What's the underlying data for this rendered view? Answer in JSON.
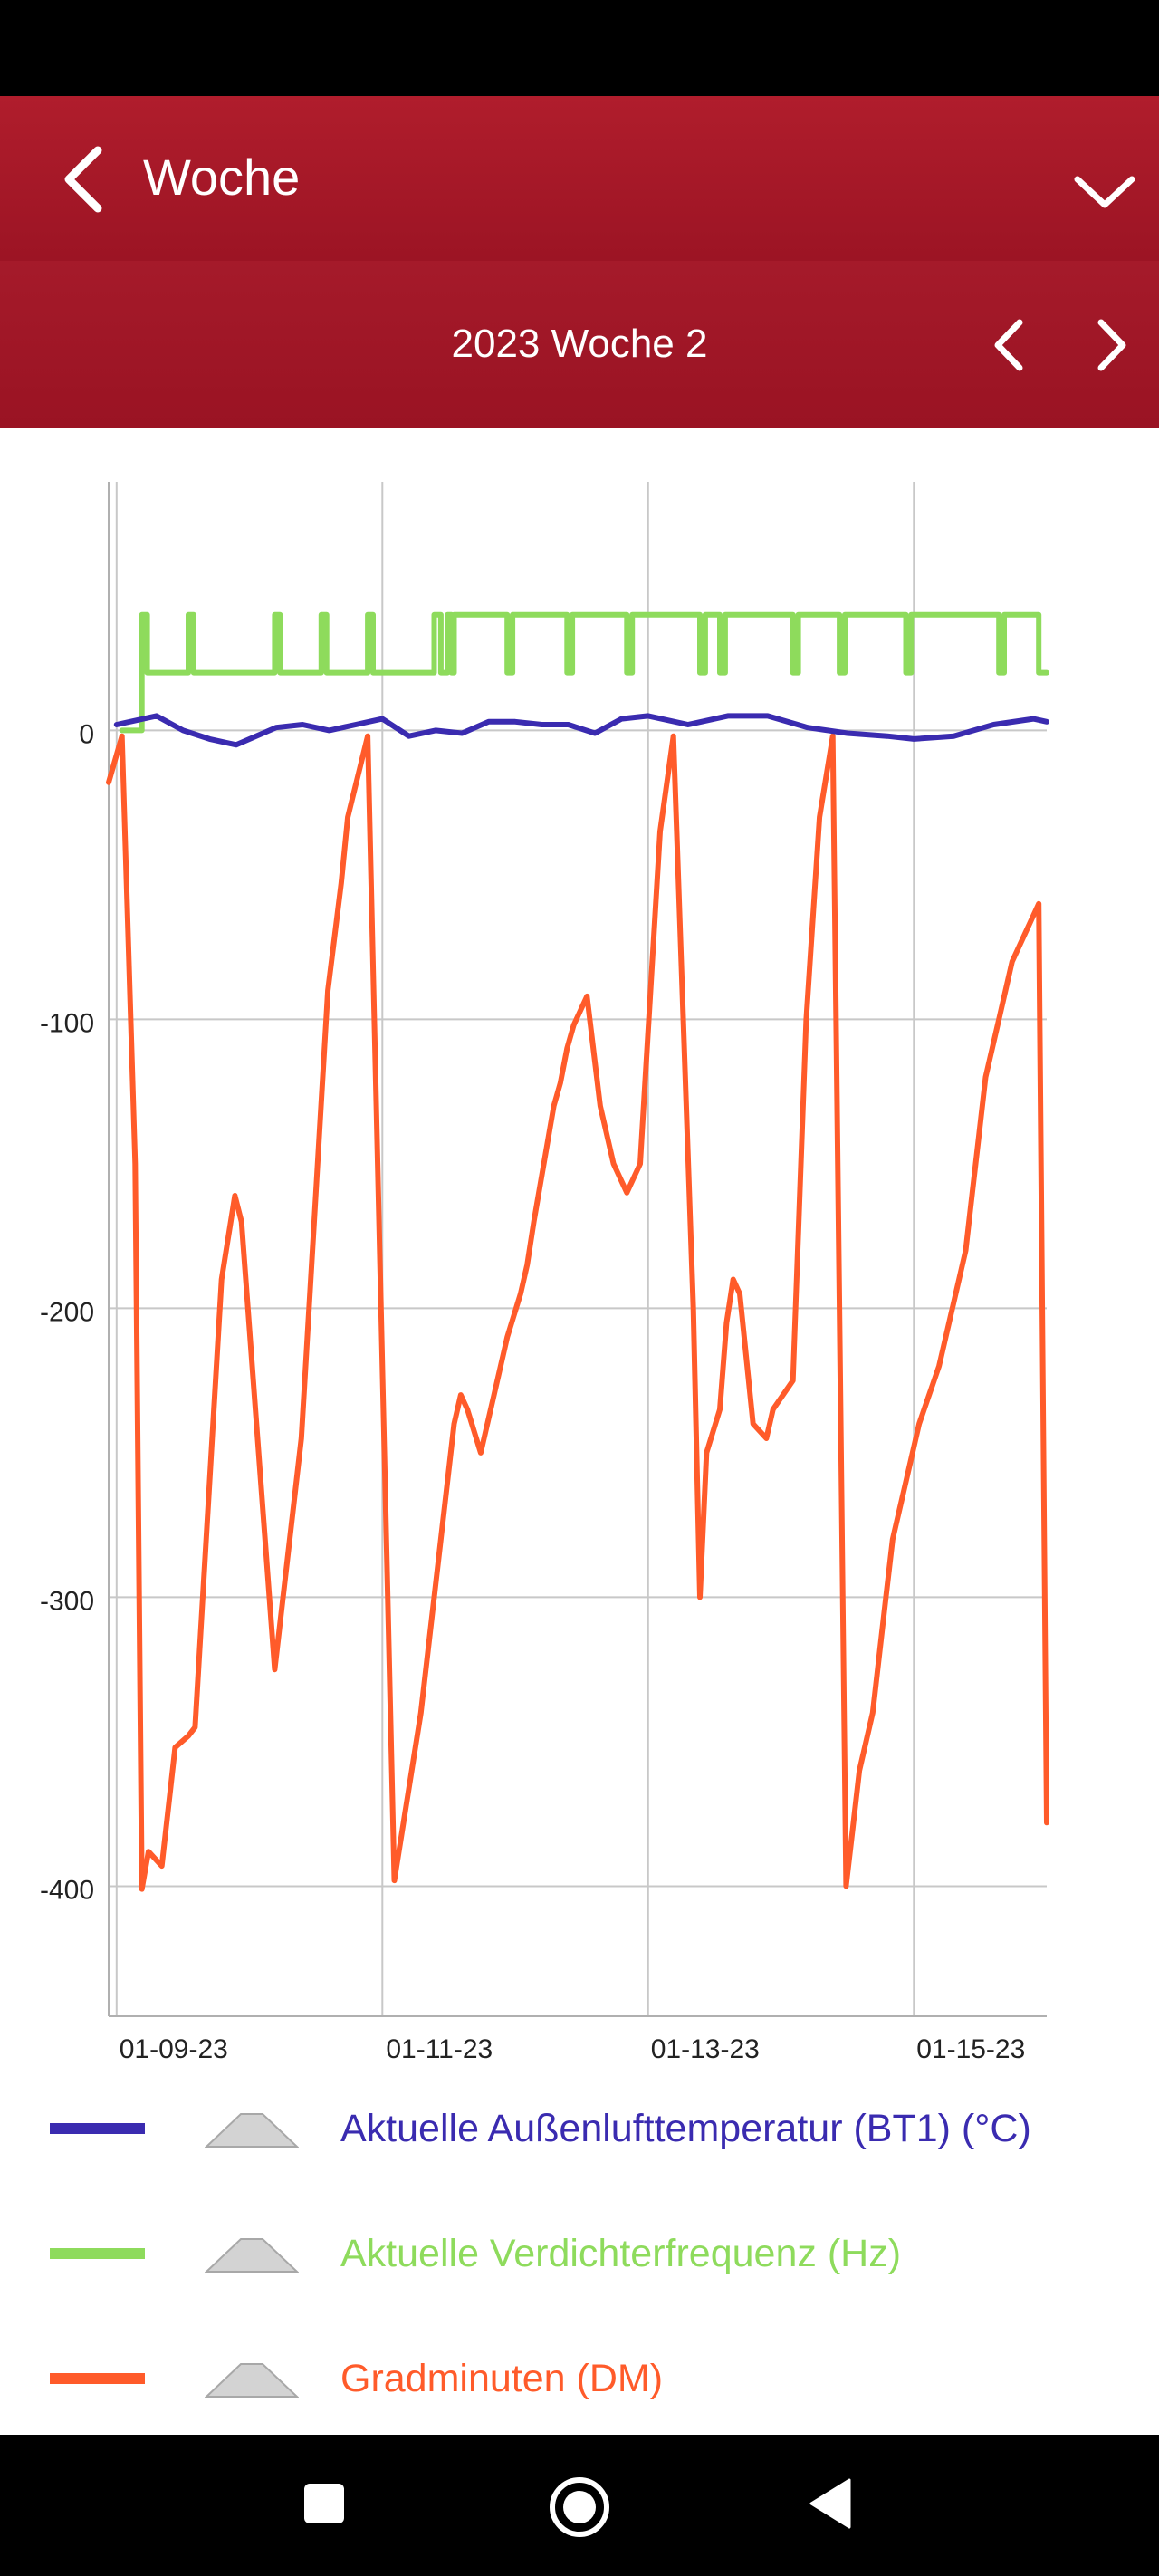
{
  "header": {
    "title": "Woche"
  },
  "subheader": {
    "week_label": "2023 Woche 2"
  },
  "icons": {
    "back": "chevron-left-icon",
    "dropdown": "chevron-down-icon",
    "prev": "chevron-left-icon",
    "next": "chevron-right-icon",
    "nav_recents": "square-icon",
    "nav_home": "circle-icon",
    "nav_back": "triangle-left-icon"
  },
  "legend": [
    {
      "label": "Aktuelle Außenlufttemperatur (BT1) (°C)",
      "color": "#3a2bb0"
    },
    {
      "label": "Aktuelle Verdichterfrequenz (Hz)",
      "color": "#8edb5c"
    },
    {
      "label": "Gradminuten (DM)",
      "color": "#ff5b2a"
    }
  ],
  "chart_data": {
    "type": "line",
    "x_tick_labels": [
      "01-09-23",
      "01-11-23",
      "01-13-23",
      "01-15-23"
    ],
    "xlim": [
      -0.06,
      7.0
    ],
    "y_tick_labels": [
      "0",
      "-100",
      "-200",
      "-300",
      "-400"
    ],
    "y_ticks": [
      0,
      -100,
      -200,
      -300,
      -400
    ],
    "ylim": [
      -445,
      86
    ],
    "grid": true,
    "series": [
      {
        "name": "Gradminuten (DM)",
        "color": "#ff5b2a",
        "x": [
          -0.06,
          0.04,
          0.14,
          0.19,
          0.24,
          0.34,
          0.44,
          0.54,
          0.59,
          0.79,
          0.89,
          0.94,
          1.19,
          1.39,
          1.59,
          1.69,
          1.74,
          1.89,
          2.09,
          2.29,
          2.39,
          2.54,
          2.59,
          2.64,
          2.74,
          2.84,
          2.94,
          3.04,
          3.09,
          3.14,
          3.29,
          3.34,
          3.39,
          3.44,
          3.54,
          3.64,
          3.74,
          3.84,
          3.94,
          4.09,
          4.19,
          4.34,
          4.39,
          4.44,
          4.54,
          4.59,
          4.64,
          4.69,
          4.79,
          4.89,
          4.94,
          5.09,
          5.19,
          5.29,
          5.39,
          5.44,
          5.49,
          5.54,
          5.59,
          5.69,
          5.74,
          5.79,
          5.84,
          5.94,
          6.04,
          6.19,
          6.29,
          6.39,
          6.44,
          6.49,
          6.54,
          6.64,
          6.74,
          6.94,
          7.0
        ],
        "y": [
          -18,
          -2,
          -150,
          -401,
          -388,
          -393,
          -352,
          -348,
          -345,
          -190,
          -161,
          -170,
          -325,
          -245,
          -90,
          -53,
          -30,
          -2,
          -398,
          -340,
          -300,
          -240,
          -230,
          -235,
          -250,
          -230,
          -210,
          -195,
          -185,
          -170,
          -130,
          -122,
          -110,
          -102,
          -92,
          -130,
          -150,
          -160,
          -150,
          -35,
          -2,
          -200,
          -300,
          -250,
          -235,
          -205,
          -190,
          -195,
          -240,
          -245,
          -235,
          -225,
          -100,
          -30,
          -2,
          -200,
          -400,
          -380,
          -360,
          -340,
          -320,
          -300,
          -280,
          -260,
          -240,
          -220,
          -200,
          -180,
          -160,
          -140,
          -120,
          -100,
          -80,
          -60,
          -378
        ]
      },
      {
        "name": "Aktuelle Verdichterfrequenz (Hz)",
        "color": "#8edb5c",
        "x": [
          0.04,
          0.19,
          0.19,
          0.23,
          0.23,
          0.54,
          0.54,
          0.58,
          0.58,
          1.19,
          1.19,
          1.23,
          1.23,
          1.54,
          1.54,
          1.58,
          1.58,
          1.89,
          1.89,
          1.93,
          1.93,
          2.39,
          2.39,
          2.44,
          2.44,
          2.49,
          2.49,
          2.52,
          2.52,
          2.54,
          2.54,
          2.94,
          2.94,
          2.98,
          2.98,
          3.39,
          3.39,
          3.43,
          3.43,
          3.84,
          3.84,
          3.88,
          3.88,
          4.39,
          4.39,
          4.43,
          4.43,
          4.54,
          4.54,
          4.58,
          4.58,
          5.09,
          5.09,
          5.13,
          5.13,
          5.44,
          5.44,
          5.48,
          5.48,
          5.94,
          5.94,
          5.98,
          5.98,
          6.64,
          6.64,
          6.68,
          6.68,
          6.94,
          6.94,
          7.0
        ],
        "y": [
          0,
          0,
          40,
          40,
          20,
          20,
          40,
          40,
          20,
          20,
          40,
          40,
          20,
          20,
          40,
          40,
          20,
          20,
          40,
          40,
          20,
          20,
          40,
          40,
          20,
          20,
          40,
          40,
          20,
          20,
          40,
          40,
          20,
          20,
          40,
          40,
          20,
          20,
          40,
          40,
          20,
          20,
          40,
          40,
          20,
          20,
          40,
          40,
          20,
          20,
          40,
          40,
          20,
          20,
          40,
          40,
          20,
          20,
          40,
          40,
          20,
          20,
          40,
          40,
          20,
          20,
          40,
          40,
          20,
          20
        ]
      },
      {
        "name": "Aktuelle Außenlufttemperatur (BT1) (°C)",
        "color": "#3a2bb0",
        "x": [
          0.0,
          0.3,
          0.5,
          0.7,
          0.9,
          1.2,
          1.4,
          1.6,
          1.8,
          2.0,
          2.2,
          2.4,
          2.6,
          2.8,
          3.0,
          3.2,
          3.4,
          3.6,
          3.8,
          4.0,
          4.3,
          4.6,
          4.9,
          5.2,
          5.5,
          5.8,
          6.0,
          6.3,
          6.6,
          6.9,
          7.0
        ],
        "y": [
          2,
          5,
          0,
          -3,
          -5,
          1,
          2,
          0,
          2,
          4,
          -2,
          0,
          -1,
          3,
          3,
          2,
          2,
          -1,
          4,
          5,
          2,
          5,
          5,
          1,
          -1,
          -2,
          -3,
          -2,
          2,
          4,
          3
        ]
      }
    ]
  }
}
